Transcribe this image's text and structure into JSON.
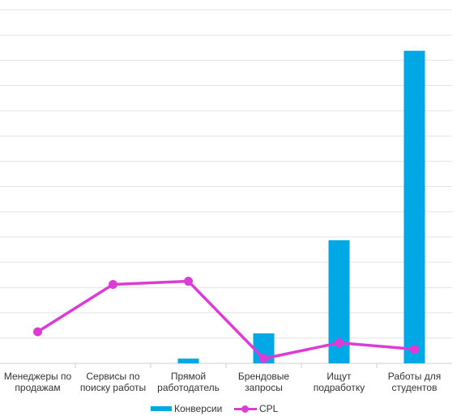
{
  "chart_data": {
    "type": "bar",
    "categories": [
      "Менеджеры по\nпродажам",
      "Сервисы по\nпоиску работы",
      "Прямой\nработодатель",
      "Брендовые\nзапросы",
      "Ищут\nподработку",
      "Работы для\nстудентов"
    ],
    "series": [
      {
        "name": "Конверсии",
        "type": "bar",
        "color": "#00a8e6",
        "values": [
          0,
          0,
          1.5,
          9.5,
          39,
          99
        ]
      },
      {
        "name": "CPL",
        "type": "line",
        "color": "#de3bd6",
        "values": [
          10,
          25,
          26,
          1.5,
          6.5,
          4.5
        ]
      }
    ],
    "bar_ylim": [
      0,
      112
    ],
    "line_ylim": [
      0,
      112
    ],
    "grid": true,
    "legend": "bottom"
  }
}
